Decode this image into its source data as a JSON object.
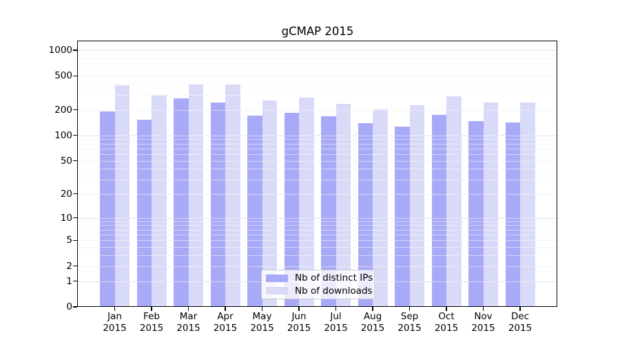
{
  "chart_data": {
    "type": "bar",
    "title": "gCMAP 2015",
    "categories": [
      "Jan",
      "Feb",
      "Mar",
      "Apr",
      "May",
      "Jun",
      "Jul",
      "Aug",
      "Sep",
      "Oct",
      "Nov",
      "Dec"
    ],
    "category_year": "2015",
    "series": [
      {
        "name": "Nb of distinct IPs",
        "color": "#a8aaf7",
        "values": [
          193,
          154,
          274,
          243,
          170,
          184,
          167,
          139,
          126,
          174,
          148,
          141
        ]
      },
      {
        "name": "Nb of downloads",
        "color": "#d8daf8",
        "values": [
          385,
          298,
          394,
          398,
          258,
          280,
          237,
          201,
          228,
          289,
          243,
          243
        ]
      }
    ],
    "y_scale": "log10(value+1)",
    "ylim": [
      0,
      1296
    ],
    "y_major_ticks": [
      0,
      1,
      2,
      5,
      10,
      20,
      50,
      100,
      200,
      500,
      1000
    ],
    "y_minor_ticks": [
      3,
      4,
      6,
      7,
      8,
      9,
      30,
      40,
      60,
      70,
      80,
      90,
      300,
      400,
      600,
      700,
      800,
      900
    ],
    "grid": true,
    "legend_position": "inside-bottom-center",
    "grid_color_power10": "#c6c6c6",
    "grid_color_major": "#e4e4e4",
    "grid_color_minor": "#f0f0f0"
  }
}
